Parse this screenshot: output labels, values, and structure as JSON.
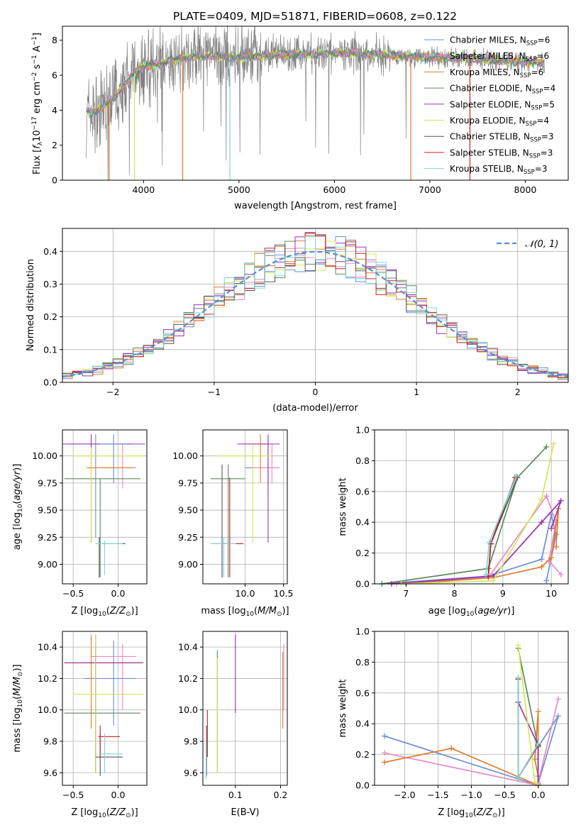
{
  "figure_title": "PLATE=0409, MJD=51871, FIBERID=0608, z=0.122",
  "legend": [
    {
      "label": "Chabrier MILES, N",
      "sub": "SSP",
      "tail": "=6",
      "color": "#6b8fd6"
    },
    {
      "label": "Salpeter MILES, N",
      "sub": "SSP",
      "tail": "=6",
      "color": "#e88ac2"
    },
    {
      "label": "Kroupa MILES, N",
      "sub": "SSP",
      "tail": "=6",
      "color": "#e07b2c"
    },
    {
      "label": "Chabrier ELODIE, N",
      "sub": "SSP",
      "tail": "=4",
      "color": "#5c8a5c"
    },
    {
      "label": "Salpeter ELODIE, N",
      "sub": "SSP",
      "tail": "=5",
      "color": "#9b30b0"
    },
    {
      "label": "Kroupa ELODIE, N",
      "sub": "SSP",
      "tail": "=4",
      "color": "#d4e65a"
    },
    {
      "label": "Chabrier STELIB, N",
      "sub": "SSP",
      "tail": "=3",
      "color": "#555555"
    },
    {
      "label": "Salpeter STELIB, N",
      "sub": "SSP",
      "tail": "=3",
      "color": "#c0222a"
    },
    {
      "label": "Kroupa STELIB, N",
      "sub": "SSP",
      "tail": "=3",
      "color": "#7fd6d6"
    }
  ],
  "chart_data": [
    {
      "type": "line",
      "id": "spectrum",
      "xlabel": "wavelength [Angstrom, rest frame]",
      "ylabel": "Flux [f_λ10^-17 erg cm^-2 s^-1 A^-1]",
      "xlim": [
        3150,
        8450
      ],
      "ylim": [
        0,
        8.8
      ],
      "xticks": [
        4000,
        5000,
        6000,
        7000,
        8000
      ],
      "yticks": [
        0,
        2,
        4,
        6,
        8
      ],
      "data_shape": {
        "x": [
          3400,
          3500,
          3600,
          3700,
          3800,
          3900,
          4000,
          4200,
          4400,
          4600,
          4800,
          5000,
          5200,
          5500,
          5800,
          6100,
          6400,
          6700,
          7000,
          7300,
          7600,
          7900,
          8200
        ],
        "y": [
          3.9,
          3.9,
          4.3,
          4.7,
          5.5,
          6.1,
          6.5,
          6.7,
          7.0,
          7.1,
          7.1,
          7.0,
          7.1,
          7.2,
          7.2,
          7.3,
          7.2,
          7.1,
          7.0,
          7.0,
          6.9,
          6.8,
          6.7
        ]
      },
      "grid": false
    },
    {
      "type": "line",
      "id": "residuals",
      "xlabel": "(data-model)/error",
      "ylabel": "Normed distribution",
      "xlim": [
        -2.5,
        2.5
      ],
      "ylim": [
        0,
        0.47
      ],
      "xticks": [
        -2,
        -1,
        0,
        1,
        2
      ],
      "yticks": [
        0.0,
        0.1,
        0.2,
        0.3,
        0.4
      ],
      "reference_label": "N(0,1)",
      "grid": true
    },
    {
      "type": "scatter",
      "id": "age_vs_Z",
      "xlabel": "Z [log10(Z/Z⊙)]",
      "ylabel": "age [log10(age/yr)]",
      "xlim": [
        -0.62,
        0.32
      ],
      "ylim": [
        8.82,
        10.24
      ],
      "xticks": [
        -0.5,
        0.0
      ],
      "yticks": [
        9.0,
        9.25,
        9.5,
        9.75,
        10.0
      ],
      "points": [
        {
          "x": -0.25,
          "y": 10.11,
          "xe": [
            -0.55,
            0.15
          ],
          "ye": [
            9.25,
            10.2
          ],
          "c": 0
        },
        {
          "x": 0.05,
          "y": 9.89,
          "xe": [
            -0.2,
            0.2
          ],
          "ye": [
            9.7,
            10.11
          ],
          "c": 1
        },
        {
          "x": -0.3,
          "y": 9.89,
          "xe": [
            -0.35,
            0.18
          ],
          "ye": [
            9.2,
            10.15
          ],
          "c": 2
        },
        {
          "x": -0.2,
          "y": 9.79,
          "xe": [
            -0.6,
            0.25
          ],
          "ye": [
            8.88,
            9.79
          ],
          "c": 3
        },
        {
          "x": -0.3,
          "y": 10.11,
          "xe": [
            -0.62,
            0.3
          ],
          "ye": [
            9.2,
            10.2
          ],
          "c": 4
        },
        {
          "x": -0.3,
          "y": 10.0,
          "xe": [
            -0.5,
            0.3
          ],
          "ye": [
            9.2,
            10.08
          ],
          "c": 5
        },
        {
          "x": -0.21,
          "y": 9.19,
          "xe": [
            -0.25,
            0.08
          ],
          "ye": [
            8.88,
            9.25
          ],
          "c": 6
        },
        {
          "x": -0.15,
          "y": 9.19,
          "xe": [
            -0.25,
            0.05
          ],
          "ye": [
            8.9,
            9.22
          ],
          "c": 8
        },
        {
          "x": -0.05,
          "y": 10.11,
          "xe": [
            -0.2,
            0.1
          ],
          "ye": [
            9.75,
            10.2
          ],
          "c": 0
        }
      ],
      "grid": true
    },
    {
      "type": "scatter",
      "id": "age_vs_mass",
      "xlabel": "mass [log10(M/M⊙)]",
      "ylabel": "",
      "xlim": [
        9.45,
        10.55
      ],
      "ylim": [
        8.82,
        10.24
      ],
      "xticks": [
        10.0,
        10.5
      ],
      "yticks": [
        9.0,
        9.25,
        9.5,
        9.75,
        10.0
      ],
      "points": [
        {
          "x": 10.3,
          "y": 9.89,
          "xe": [
            10.0,
            10.45
          ],
          "ye": [
            9.7,
            10.15
          ],
          "c": 0
        },
        {
          "x": 10.35,
          "y": 9.89,
          "xe": [
            10.1,
            10.45
          ],
          "ye": [
            9.75,
            10.11
          ],
          "c": 1
        },
        {
          "x": 10.2,
          "y": 10.11,
          "xe": [
            9.95,
            10.3
          ],
          "ye": [
            9.75,
            10.2
          ],
          "c": 2
        },
        {
          "x": 9.78,
          "y": 9.79,
          "xe": [
            9.55,
            10.0
          ],
          "ye": [
            8.88,
            9.92
          ],
          "c": 3
        },
        {
          "x": 10.3,
          "y": 10.11,
          "xe": [
            9.9,
            10.45
          ],
          "ye": [
            9.2,
            10.2
          ],
          "c": 4
        },
        {
          "x": 10.1,
          "y": 10.0,
          "xe": [
            9.6,
            10.35
          ],
          "ye": [
            9.2,
            10.1
          ],
          "c": 5
        },
        {
          "x": 9.7,
          "y": 9.19,
          "xe": [
            9.55,
            9.85
          ],
          "ye": [
            8.88,
            9.92
          ],
          "c": 6
        },
        {
          "x": 9.8,
          "y": 9.19,
          "xe": [
            9.7,
            9.98
          ],
          "ye": [
            8.88,
            9.8
          ],
          "c": 7
        },
        {
          "x": 9.72,
          "y": 9.19,
          "xe": [
            9.55,
            9.88
          ],
          "ye": [
            8.88,
            9.25
          ],
          "c": 8
        }
      ],
      "grid": true
    },
    {
      "type": "line",
      "id": "massweight_vs_age",
      "xlabel": "age [log10(age/yr)]",
      "ylabel": "mass weight",
      "xlim": [
        6.35,
        10.35
      ],
      "ylim": [
        0,
        1.0
      ],
      "xticks": [
        7,
        8,
        9,
        10
      ],
      "yticks": [
        0.0,
        0.2,
        0.4,
        0.6,
        0.8,
        1.0
      ],
      "series": [
        {
          "c": 0,
          "x": [
            6.5,
            8.7,
            9.8,
            10.0,
            10.1,
            9.9
          ],
          "y": [
            0.0,
            0.05,
            0.16,
            0.45,
            0.32,
            0.02
          ]
        },
        {
          "c": 1,
          "x": [
            6.8,
            8.7,
            9.9,
            10.1,
            9.95,
            10.2
          ],
          "y": [
            0.0,
            0.04,
            0.57,
            0.4,
            0.15,
            0.06
          ]
        },
        {
          "c": 2,
          "x": [
            7.0,
            8.8,
            9.8,
            10.0,
            10.15,
            10.1
          ],
          "y": [
            0.0,
            0.04,
            0.11,
            0.17,
            0.49,
            0.24
          ]
        },
        {
          "c": 3,
          "x": [
            6.5,
            8.7,
            9.3,
            9.9
          ],
          "y": [
            0.0,
            0.1,
            0.69,
            0.89
          ]
        },
        {
          "c": 4,
          "x": [
            6.7,
            8.8,
            9.8,
            10.2,
            10.0
          ],
          "y": [
            0.0,
            0.05,
            0.4,
            0.54,
            0.36
          ]
        },
        {
          "c": 5,
          "x": [
            6.9,
            8.8,
            9.8,
            10.05
          ],
          "y": [
            0.0,
            0.02,
            0.55,
            0.91
          ]
        },
        {
          "c": 6,
          "x": [
            8.7,
            8.75,
            9.3
          ],
          "y": [
            0.05,
            0.26,
            0.69
          ]
        },
        {
          "c": 7,
          "x": [
            8.7,
            8.75,
            9.25
          ],
          "y": [
            0.05,
            0.26,
            0.69
          ]
        },
        {
          "c": 8,
          "x": [
            8.65,
            8.72,
            9.28
          ],
          "y": [
            0.06,
            0.27,
            0.7
          ]
        }
      ],
      "grid": true
    },
    {
      "type": "scatter",
      "id": "mass_vs_Z",
      "xlabel": "Z [log10(Z/Z⊙)]",
      "ylabel": "mass [log10(M/M⊙)]",
      "xlim": [
        -0.62,
        0.32
      ],
      "ylim": [
        9.52,
        10.5
      ],
      "xticks": [
        -0.5,
        0.0
      ],
      "yticks": [
        9.6,
        9.8,
        10.0,
        10.2,
        10.4
      ],
      "points": [
        {
          "x": -0.05,
          "y": 10.2,
          "xe": [
            -0.38,
            0.2
          ],
          "ye": [
            9.9,
            10.44
          ],
          "c": 0
        },
        {
          "x": 0.05,
          "y": 10.34,
          "xe": [
            -0.3,
            0.2
          ],
          "ye": [
            10.0,
            10.42
          ],
          "c": 1
        },
        {
          "x": -0.3,
          "y": 10.3,
          "xe": [
            -0.6,
            0.28
          ],
          "ye": [
            9.88,
            10.48
          ],
          "c": 2
        },
        {
          "x": -0.25,
          "y": 9.98,
          "xe": [
            -0.6,
            0.25
          ],
          "ye": [
            9.6,
            10.42
          ],
          "c": 3
        },
        {
          "x": -0.25,
          "y": 10.3,
          "xe": [
            -0.6,
            0.28
          ],
          "ye": [
            9.6,
            10.48
          ],
          "c": 4
        },
        {
          "x": -0.25,
          "y": 10.1,
          "xe": [
            -0.5,
            0.28
          ],
          "ye": [
            9.6,
            10.48
          ],
          "c": 5
        },
        {
          "x": -0.2,
          "y": 9.7,
          "xe": [
            -0.25,
            0.05
          ],
          "ye": [
            9.58,
            9.85
          ],
          "c": 6
        },
        {
          "x": -0.2,
          "y": 9.83,
          "xe": [
            -0.22,
            0.02
          ],
          "ye": [
            9.7,
            9.9
          ],
          "c": 7
        },
        {
          "x": -0.15,
          "y": 9.72,
          "xe": [
            -0.2,
            0.05
          ],
          "ye": [
            9.6,
            9.85
          ],
          "c": 8
        }
      ],
      "grid": true
    },
    {
      "type": "scatter",
      "id": "mass_vs_ebv",
      "xlabel": "E(B-V)",
      "ylabel": "",
      "xlim": [
        0.028,
        0.215
      ],
      "ylim": [
        9.52,
        10.5
      ],
      "xticks": [
        0.1,
        0.2
      ],
      "yticks": [
        9.6,
        9.8,
        10.0,
        10.2,
        10.4
      ],
      "points": [
        {
          "x": 0.207,
          "y": 10.2,
          "ye": [
            10.0,
            10.42
          ],
          "c": 1
        },
        {
          "x": 0.205,
          "y": 10.1,
          "ye": [
            9.88,
            10.37
          ],
          "c": 2
        },
        {
          "x": 0.1,
          "y": 10.2,
          "ye": [
            9.98,
            10.48
          ],
          "c": 4
        },
        {
          "x": 0.06,
          "y": 10.0,
          "ye": [
            9.6,
            10.38
          ],
          "c": 3
        },
        {
          "x": 0.06,
          "y": 9.95,
          "ye": [
            9.6,
            10.33
          ],
          "c": 5
        },
        {
          "x": 0.038,
          "y": 9.8,
          "ye": [
            9.7,
            10.0
          ],
          "c": 7
        },
        {
          "x": 0.036,
          "y": 9.7,
          "ye": [
            9.58,
            9.9
          ],
          "c": 6
        },
        {
          "x": 0.035,
          "y": 9.65,
          "ye": [
            9.56,
            9.8
          ],
          "c": 8
        }
      ],
      "grid": true
    },
    {
      "type": "line",
      "id": "massweight_vs_Z",
      "xlabel": "Z [log10(Z/Z⊙)]",
      "ylabel": "mass weight",
      "xlim": [
        -2.45,
        0.45
      ],
      "ylim": [
        0,
        1.0
      ],
      "xticks": [
        -2.0,
        -1.5,
        -1.0,
        -0.5,
        0.0
      ],
      "yticks": [
        0.0,
        0.2,
        0.4,
        0.6,
        0.8,
        1.0
      ],
      "series": [
        {
          "c": 0,
          "x": [
            -2.3,
            0.0,
            0.0,
            0.3,
            0.0
          ],
          "y": [
            0.32,
            0.0,
            0.25,
            0.45,
            0.01
          ]
        },
        {
          "c": 1,
          "x": [
            -2.3,
            0.0,
            0.0,
            0.3
          ],
          "y": [
            0.21,
            0.0,
            0.02,
            0.56
          ]
        },
        {
          "c": 2,
          "x": [
            -2.3,
            -1.3,
            0.0,
            0.0,
            -0.05,
            0.0
          ],
          "y": [
            0.15,
            0.24,
            0.0,
            0.48,
            0.17,
            0.06
          ]
        },
        {
          "c": 3,
          "x": [
            -0.3,
            0.0,
            0.0
          ],
          "y": [
            0.89,
            0.25,
            0.0
          ]
        },
        {
          "c": 4,
          "x": [
            -0.3,
            0.0,
            0.0
          ],
          "y": [
            0.54,
            0.26,
            0.0
          ]
        },
        {
          "c": 5,
          "x": [
            -0.3,
            -0.05,
            0.0
          ],
          "y": [
            0.91,
            0.02,
            0.0
          ]
        },
        {
          "c": 6,
          "x": [
            -0.3,
            -0.3,
            0.0
          ],
          "y": [
            0.69,
            0.05,
            0.26
          ]
        },
        {
          "c": 7,
          "x": [
            -0.3,
            -0.3,
            0.0
          ],
          "y": [
            0.69,
            0.05,
            0.26
          ]
        },
        {
          "c": 8,
          "x": [
            -0.3,
            -0.3,
            0.0
          ],
          "y": [
            0.7,
            0.05,
            0.27
          ]
        }
      ],
      "grid": true
    }
  ]
}
